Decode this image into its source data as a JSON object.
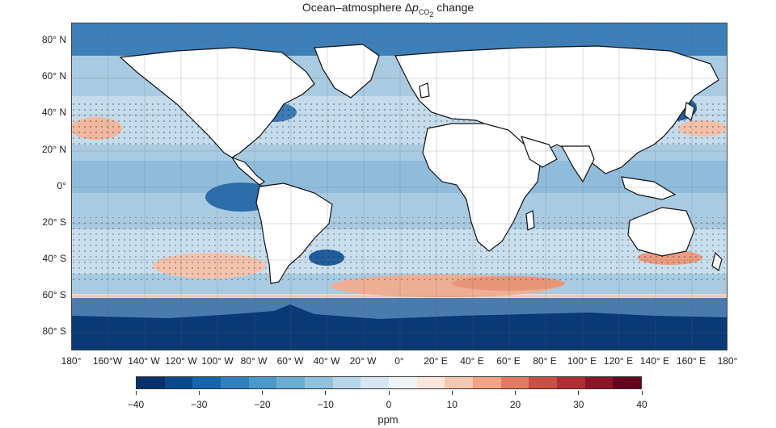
{
  "title": {
    "prefix": "Ocean–atmosphere Δ",
    "symbol": "p",
    "subscript": "CO",
    "sub2": "2",
    "suffix": " change"
  },
  "y_axis_labels": [
    "80° N",
    "60° N",
    "40° N",
    "20° N",
    "0°",
    "20° S",
    "40° S",
    "60° S",
    "80° S"
  ],
  "x_axis_labels": [
    "180°",
    "160°W",
    "140° W",
    "120° W",
    "100° W",
    "80° W",
    "60° W",
    "40° W",
    "20° W",
    "0°",
    "20° E",
    "40° E",
    "60° E",
    "80° E",
    "100° E",
    "120° E",
    "140° E",
    "160° E",
    "180°"
  ],
  "colorbar": {
    "ticks": [
      "−40",
      "−30",
      "−20",
      "−10",
      "0",
      "10",
      "20",
      "30",
      "40"
    ],
    "unit": "ppm",
    "range": [
      -40,
      40
    ],
    "colors": [
      "#08306b",
      "#0b4a8a",
      "#1764ab",
      "#2f7fbc",
      "#4b98ca",
      "#6aaed6",
      "#8fc2de",
      "#b6d6e8",
      "#d6e6f2",
      "#eef3f8",
      "#fbe6dc",
      "#f6c8b0",
      "#f1a486",
      "#e27b61",
      "#cc4f43",
      "#b12d33",
      "#8d1427",
      "#67001f"
    ]
  }
}
